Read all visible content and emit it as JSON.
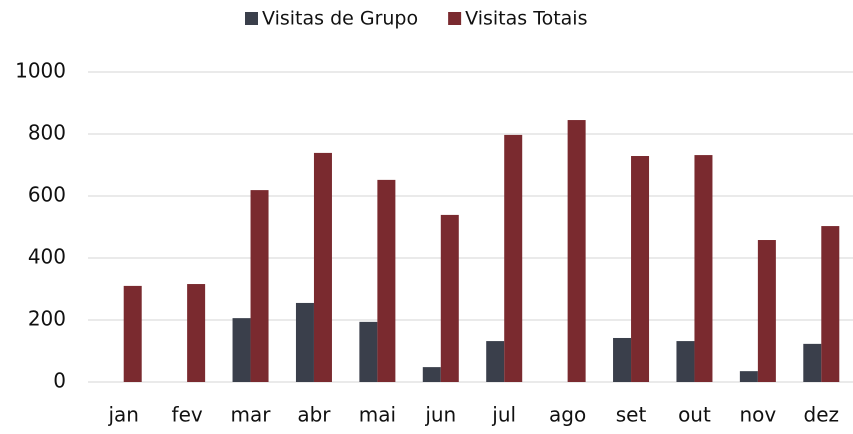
{
  "chart_data": {
    "type": "bar",
    "categories": [
      "jan",
      "fev",
      "mar",
      "abr",
      "mai",
      "jun",
      "jul",
      "ago",
      "set",
      "out",
      "nov",
      "dez"
    ],
    "series": [
      {
        "name": "Visitas de Grupo",
        "color": "#3a3f4b",
        "values": [
          0,
          0,
          206,
          255,
          194,
          48,
          132,
          0,
          142,
          132,
          35,
          123
        ]
      },
      {
        "name": "Visitas Totais",
        "color": "#7a2a2f",
        "values": [
          310,
          316,
          619,
          739,
          652,
          539,
          797,
          845,
          729,
          732,
          458,
          503
        ]
      }
    ],
    "ylim": [
      0,
      1000
    ],
    "yticks": [
      0,
      200,
      400,
      600,
      800,
      1000
    ],
    "grid": true,
    "legend": "top"
  }
}
